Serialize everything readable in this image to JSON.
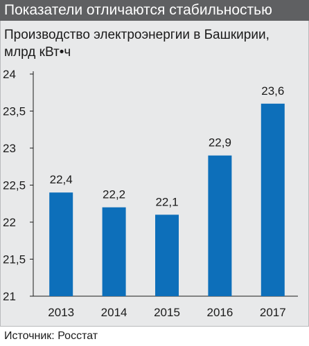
{
  "header": {
    "title": "Показатели отличаются стабильностью"
  },
  "chart_data": {
    "type": "bar",
    "title": "Производство электроэнергии в Башкирии,",
    "subtitle": "млрд кВт•ч",
    "categories": [
      "2013",
      "2014",
      "2015",
      "2016",
      "2017"
    ],
    "values": [
      22.4,
      22.2,
      22.1,
      22.9,
      23.6
    ],
    "value_labels": [
      "22,4",
      "22,2",
      "22,1",
      "22,9",
      "23,6"
    ],
    "ylim": [
      21,
      24
    ],
    "y_ticks": [
      21,
      21.5,
      22,
      22.5,
      23,
      23.5,
      24
    ],
    "y_tick_labels": [
      "21",
      "21,5",
      "22",
      "22,5",
      "23",
      "23,5",
      "24"
    ],
    "bar_color": "#0d6fba",
    "grid": false
  },
  "footer": {
    "source": "Источник: Росстат"
  }
}
